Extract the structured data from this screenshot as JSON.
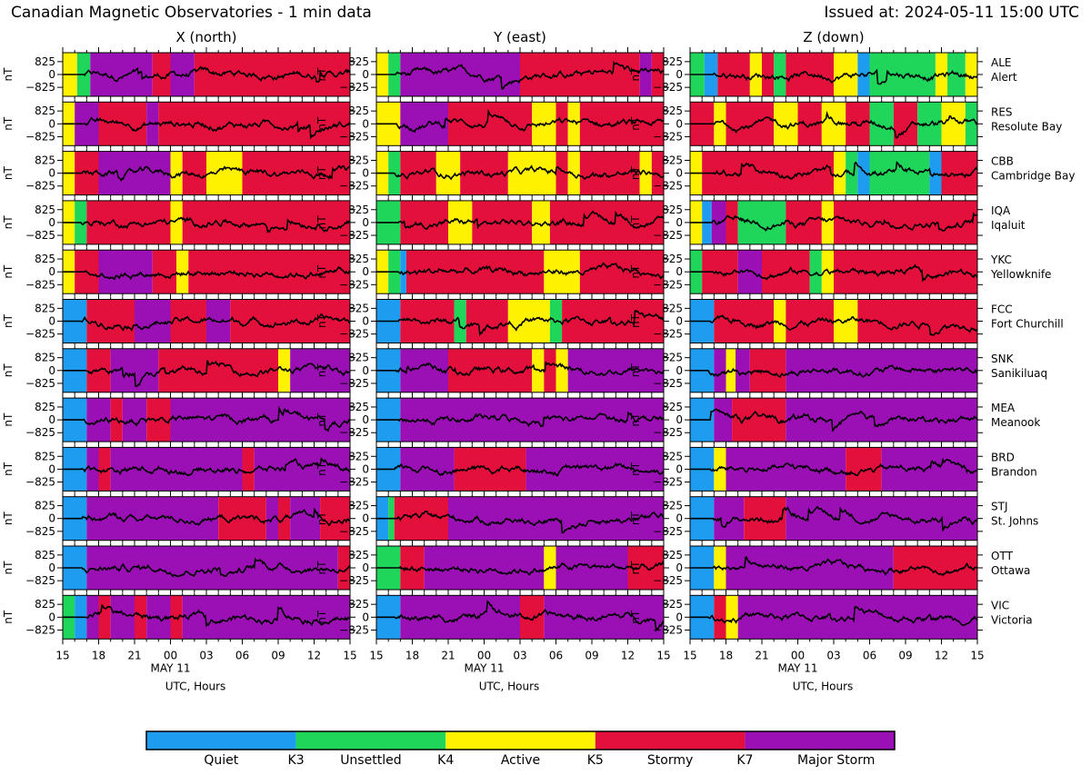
{
  "header": {
    "title": "Canadian Magnetic Observatories - 1 min data",
    "issued": "Issued at: 2024-05-11 15:00 UTC"
  },
  "chart_data": {
    "type": "line",
    "description_units": "nT vs UTC hours, background colored by activity level",
    "columns": [
      "X (north)",
      "Y (east)",
      "Z (down)"
    ],
    "y_unit": "nT",
    "y_ticks": [
      "825",
      "0",
      "−825"
    ],
    "y_tick_values": [
      825,
      0,
      -825
    ],
    "ylim": [
      -1400,
      1400
    ],
    "x_hours_range": [
      0,
      24
    ],
    "x_start_utc": "2024-05-10 15:00",
    "x_ticks": [
      "15",
      "18",
      "21",
      "00",
      "03",
      "06",
      "09",
      "12",
      "15"
    ],
    "x_tick_hours": [
      0,
      3,
      6,
      9,
      12,
      15,
      18,
      21,
      24
    ],
    "date_label": "MAY 11",
    "date_label_hour": 9,
    "xlabel": "UTC, Hours",
    "stations": [
      {
        "code": "ALE",
        "name": "Alert",
        "bands": [
          [
            "A",
            0,
            1.2,
            "U",
            1.2,
            2.3,
            "M",
            2.3,
            7.5,
            "S",
            7.5,
            9.0,
            "M",
            9.0,
            11.0,
            "S",
            11.0,
            24
          ],
          [
            "A",
            0,
            1.0,
            "U",
            1.0,
            2.0,
            "M",
            2.0,
            12.0,
            "S",
            12.0,
            22.0,
            "M",
            22.0,
            23.0,
            "S",
            23.0,
            24
          ],
          [
            "U",
            0,
            1.2,
            "Q",
            1.2,
            2.3,
            "S",
            2.3,
            5.0,
            "A",
            5.0,
            6.0,
            "S",
            6.0,
            7.0,
            "U",
            7.0,
            8.0,
            "S",
            8.0,
            12.0,
            "A",
            12.0,
            14.0,
            "Q",
            14.0,
            15.0,
            "U",
            15.0,
            20.5,
            "A",
            20.5,
            21.5,
            "U",
            21.5,
            23.0,
            "A",
            23.0,
            24
          ]
        ]
      },
      {
        "code": "RES",
        "name": "Resolute Bay",
        "bands": [
          [
            "A",
            0,
            1.0,
            "M",
            1.0,
            3.0,
            "S",
            3.0,
            7.0,
            "M",
            7.0,
            8.0,
            "S",
            8.0,
            24
          ],
          [
            "A",
            0,
            2.0,
            "M",
            2.0,
            6.0,
            "S",
            6.0,
            13.0,
            "A",
            13.0,
            15.0,
            "S",
            15.0,
            16.0,
            "A",
            16.0,
            17.0,
            "S",
            17.0,
            24
          ],
          [
            "S",
            0,
            2.0,
            "A",
            2.0,
            3.0,
            "S",
            3.0,
            7.0,
            "A",
            7.0,
            9.0,
            "S",
            9.0,
            11.0,
            "A",
            11.0,
            13.0,
            "S",
            13.0,
            15.0,
            "U",
            15.0,
            17.0,
            "S",
            17.0,
            19.0,
            "U",
            19.0,
            21.0,
            "A",
            21.0,
            23.0,
            "U",
            23.0,
            24
          ]
        ]
      },
      {
        "code": "CBB",
        "name": "Cambridge Bay",
        "bands": [
          [
            "A",
            0,
            1.0,
            "S",
            1.0,
            3.0,
            "M",
            3.0,
            9.0,
            "A",
            9.0,
            10.0,
            "S",
            10.0,
            12.0,
            "A",
            12.0,
            15.0,
            "S",
            15.0,
            24
          ],
          [
            "A",
            0,
            1.0,
            "U",
            1.0,
            2.0,
            "S",
            2.0,
            5.0,
            "A",
            5.0,
            7.0,
            "S",
            7.0,
            11.0,
            "A",
            11.0,
            15.0,
            "S",
            15.0,
            16.0,
            "A",
            16.0,
            17.0,
            "S",
            17.0,
            22.0,
            "A",
            22.0,
            23.0,
            "S",
            23.0,
            24
          ],
          [
            "A",
            0,
            1.0,
            "S",
            1.0,
            12.0,
            "A",
            12.0,
            13.0,
            "U",
            13.0,
            14.0,
            "Q",
            14.0,
            15.0,
            "U",
            15.0,
            20.0,
            "Q",
            20.0,
            21.0,
            "S",
            21.0,
            24
          ]
        ]
      },
      {
        "code": "IQA",
        "name": "Iqaluit",
        "bands": [
          [
            "A",
            0,
            1.0,
            "U",
            1.0,
            2.0,
            "S",
            2.0,
            9.0,
            "A",
            9.0,
            10.0,
            "S",
            10.0,
            24
          ],
          [
            "U",
            0,
            2.0,
            "S",
            2.0,
            6.0,
            "A",
            6.0,
            8.0,
            "S",
            8.0,
            13.0,
            "A",
            13.0,
            14.5,
            "S",
            14.5,
            24
          ],
          [
            "A",
            0,
            1.0,
            "Q",
            1.0,
            1.8,
            "M",
            1.8,
            3.0,
            "S",
            3.0,
            4.0,
            "U",
            4.0,
            8.0,
            "S",
            8.0,
            11.0,
            "A",
            11.0,
            12.0,
            "S",
            12.0,
            24
          ]
        ]
      },
      {
        "code": "YKC",
        "name": "Yellowknife",
        "bands": [
          [
            "A",
            0,
            1.0,
            "S",
            1.0,
            3.0,
            "M",
            3.0,
            7.5,
            "S",
            7.5,
            9.5,
            "A",
            9.5,
            10.5,
            "S",
            10.5,
            24
          ],
          [
            "A",
            0,
            1.0,
            "U",
            1.0,
            2.0,
            "Q",
            2.0,
            2.5,
            "S",
            2.5,
            14.0,
            "A",
            14.0,
            17.0,
            "S",
            17.0,
            24
          ],
          [
            "U",
            0,
            1.0,
            "S",
            1.0,
            4.0,
            "M",
            4.0,
            6.0,
            "S",
            6.0,
            10.0,
            "U",
            10.0,
            11.0,
            "A",
            11.0,
            12.0,
            "S",
            12.0,
            24
          ]
        ]
      },
      {
        "code": "FCC",
        "name": "Fort Churchill",
        "bands": [
          [
            "Q",
            0,
            2.0,
            "S",
            2.0,
            6.0,
            "M",
            6.0,
            9.0,
            "S",
            9.0,
            12.0,
            "M",
            12.0,
            14.0,
            "S",
            14.0,
            24
          ],
          [
            "Q",
            0,
            2.0,
            "S",
            2.0,
            6.5,
            "U",
            6.5,
            7.5,
            "S",
            7.5,
            11.0,
            "A",
            11.0,
            14.5,
            "U",
            14.5,
            15.5,
            "S",
            15.5,
            24
          ],
          [
            "Q",
            0,
            2.0,
            "S",
            2.0,
            7.0,
            "A",
            7.0,
            8.0,
            "S",
            8.0,
            12.0,
            "A",
            12.0,
            14.0,
            "S",
            14.0,
            24
          ]
        ]
      },
      {
        "code": "SNK",
        "name": "Sanikiluaq",
        "bands": [
          [
            "Q",
            0,
            2.0,
            "S",
            2.0,
            4.0,
            "M",
            4.0,
            8.0,
            "S",
            8.0,
            18.0,
            "A",
            18.0,
            19.0,
            "M",
            19.0,
            24
          ],
          [
            "Q",
            0,
            2.0,
            "M",
            2.0,
            6.0,
            "S",
            6.0,
            13.0,
            "A",
            13.0,
            14.0,
            "S",
            14.0,
            15.0,
            "A",
            15.0,
            16.0,
            "M",
            16.0,
            24
          ],
          [
            "Q",
            0,
            2.0,
            "M",
            2.0,
            3.0,
            "A",
            3.0,
            3.8,
            "M",
            3.8,
            5.0,
            "S",
            5.0,
            8.0,
            "M",
            8.0,
            24
          ]
        ]
      },
      {
        "code": "MEA",
        "name": "Meanook",
        "bands": [
          [
            "Q",
            0,
            2.0,
            "M",
            2.0,
            4.0,
            "S",
            4.0,
            5.0,
            "M",
            5.0,
            7.0,
            "S",
            7.0,
            9.0,
            "M",
            9.0,
            24
          ],
          [
            "Q",
            0,
            2.0,
            "M",
            2.0,
            24
          ],
          [
            "Q",
            0,
            2.0,
            "M",
            2.0,
            3.5,
            "S",
            3.5,
            8.0,
            "M",
            8.0,
            24
          ]
        ]
      },
      {
        "code": "BRD",
        "name": "Brandon",
        "bands": [
          [
            "Q",
            0,
            2.0,
            "M",
            2.0,
            3.0,
            "S",
            3.0,
            4.0,
            "M",
            4.0,
            15.0,
            "S",
            15.0,
            16.0,
            "M",
            16.0,
            24
          ],
          [
            "Q",
            0,
            2.0,
            "M",
            2.0,
            6.5,
            "S",
            6.5,
            12.5,
            "M",
            12.5,
            24
          ],
          [
            "Q",
            0,
            2.0,
            "A",
            2.0,
            3.0,
            "M",
            3.0,
            13.0,
            "S",
            13.0,
            16.0,
            "M",
            16.0,
            24
          ]
        ]
      },
      {
        "code": "STJ",
        "name": "St. Johns",
        "bands": [
          [
            "Q",
            0,
            2.0,
            "M",
            2.0,
            13.0,
            "S",
            13.0,
            17.0,
            "M",
            17.0,
            18.0,
            "S",
            18.0,
            19.0,
            "M",
            19.0,
            21.5,
            "S",
            21.5,
            24
          ],
          [
            "Q",
            0,
            1.0,
            "U",
            1.0,
            1.5,
            "S",
            1.5,
            6.0,
            "M",
            6.0,
            24
          ],
          [
            "Q",
            0,
            2.0,
            "M",
            2.0,
            4.5,
            "S",
            4.5,
            8.0,
            "M",
            8.0,
            24
          ]
        ]
      },
      {
        "code": "OTT",
        "name": "Ottawa",
        "bands": [
          [
            "Q",
            0,
            2.0,
            "M",
            2.0,
            23.0,
            "S",
            23.0,
            24
          ],
          [
            "U",
            0,
            2.0,
            "S",
            2.0,
            4.0,
            "M",
            4.0,
            14.0,
            "A",
            14.0,
            15.0,
            "M",
            15.0,
            21.0,
            "S",
            21.0,
            24
          ],
          [
            "Q",
            0,
            2.0,
            "A",
            2.0,
            3.0,
            "M",
            3.0,
            17.0,
            "S",
            17.0,
            24
          ]
        ]
      },
      {
        "code": "VIC",
        "name": "Victoria",
        "bands": [
          [
            "U",
            0,
            1.0,
            "Q",
            1.0,
            2.0,
            "M",
            2.0,
            3.0,
            "S",
            3.0,
            4.0,
            "M",
            4.0,
            6.0,
            "S",
            6.0,
            7.0,
            "M",
            7.0,
            9.0,
            "S",
            9.0,
            10.0,
            "M",
            10.0,
            24
          ],
          [
            "Q",
            0,
            2.0,
            "M",
            2.0,
            12.0,
            "S",
            12.0,
            14.0,
            "M",
            14.0,
            24
          ],
          [
            "Q",
            0,
            2.0,
            "S",
            2.0,
            3.0,
            "A",
            3.0,
            4.0,
            "M",
            4.0,
            24
          ]
        ]
      }
    ],
    "legend": {
      "levels": [
        {
          "key": "Q",
          "label": "Quiet",
          "color": "#1e9cf0"
        },
        {
          "key": "U",
          "label": "Unsettled",
          "color": "#1fd65a"
        },
        {
          "key": "A",
          "label": "Active",
          "color": "#fff200"
        },
        {
          "key": "S",
          "label": "Stormy",
          "color": "#e4103c"
        },
        {
          "key": "M",
          "label": "Major Storm",
          "color": "#9b10b5"
        }
      ],
      "thresholds": [
        "K3",
        "K4",
        "K5",
        "K7"
      ]
    }
  }
}
